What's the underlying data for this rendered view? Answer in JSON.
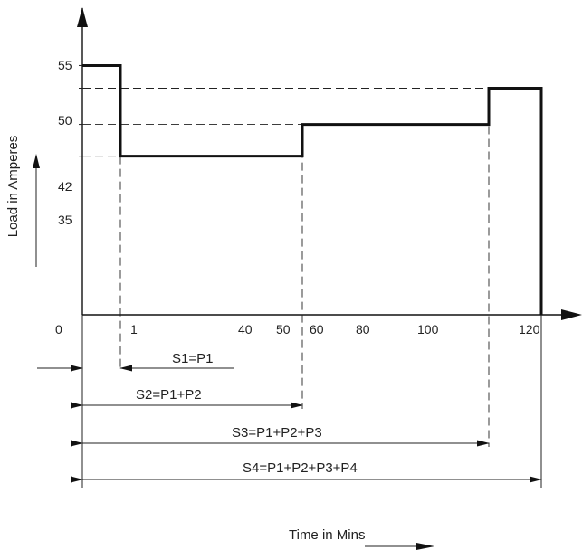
{
  "chart_data": {
    "type": "line",
    "title": "",
    "xlabel": "Time in Mins",
    "ylabel": "Load in Amperes",
    "x_ticks": [
      "0",
      "1",
      "40",
      "50",
      "60",
      "80",
      "100",
      "120"
    ],
    "y_ticks": [
      "35",
      "42",
      "50",
      "55"
    ],
    "series": [
      {
        "step": "post",
        "points": [
          {
            "x": 0,
            "y": 55
          },
          {
            "x": 1,
            "y": 35
          },
          {
            "x": 50,
            "y": 42
          },
          {
            "x": 105,
            "y": 50
          },
          {
            "x": 120,
            "y": 0
          }
        ]
      }
    ],
    "annotations": [
      {
        "label": "S1=P1"
      },
      {
        "label": "S2=P1+P2"
      },
      {
        "label": "S3=P1+P2+P3"
      },
      {
        "label": "S4=P1+P2+P3+P4"
      }
    ],
    "grid": false,
    "legend": "none"
  }
}
